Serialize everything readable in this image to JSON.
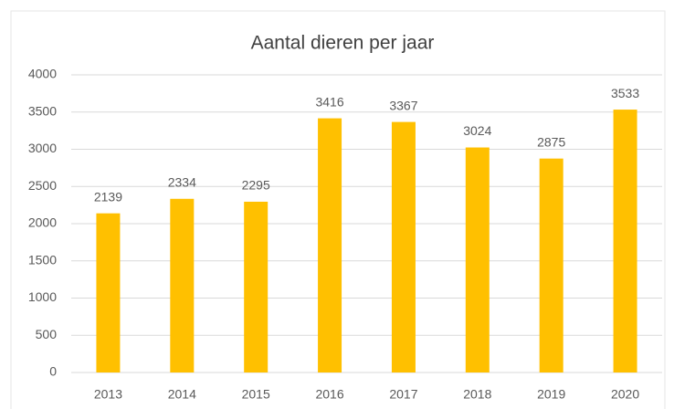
{
  "chart_data": {
    "type": "bar",
    "title": "Aantal dieren per jaar",
    "categories": [
      "2013",
      "2014",
      "2015",
      "2016",
      "2017",
      "2018",
      "2019",
      "2020"
    ],
    "values": [
      2139,
      2334,
      2295,
      3416,
      3367,
      3024,
      2875,
      3533
    ],
    "color": "#ffc000",
    "ylim": [
      0,
      4000
    ],
    "yticks": [
      0,
      500,
      1000,
      1500,
      2000,
      2500,
      3000,
      3500,
      4000
    ],
    "grid": true
  }
}
